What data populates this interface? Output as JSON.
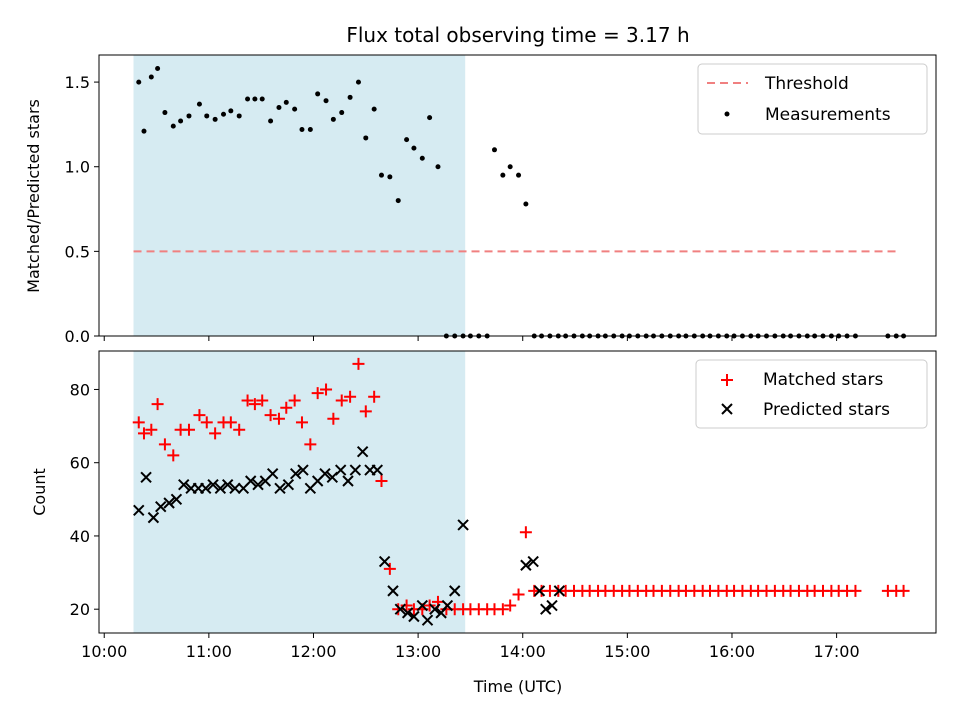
{
  "chart_data": {
    "title": "Flux total observing time = 3.17 h",
    "xlabel": "Time (UTC)",
    "x_unit": "hours",
    "xlim": [
      9.95,
      17.95
    ],
    "x_ticks": [
      {
        "value": 10,
        "label": "10:00"
      },
      {
        "value": 11,
        "label": "11:00"
      },
      {
        "value": 12,
        "label": "12:00"
      },
      {
        "value": 13,
        "label": "13:00"
      },
      {
        "value": 14,
        "label": "14:00"
      },
      {
        "value": 15,
        "label": "15:00"
      },
      {
        "value": 16,
        "label": "16:00"
      },
      {
        "value": 17,
        "label": "17:00"
      }
    ],
    "shaded_span": {
      "x_start": 10.28,
      "x_end": 13.45,
      "color": "#add8e6"
    },
    "panels": [
      {
        "id": "ratio",
        "type": "scatter",
        "ylabel": "Matched/Predicted stars",
        "ylim": [
          0,
          1.66
        ],
        "y_ticks": [
          0,
          0.5,
          1.0,
          1.5
        ],
        "y_tick_labels": [
          "0.0",
          "0.5",
          "1.0",
          "1.5"
        ],
        "legend": {
          "placement": "top-right",
          "entries": [
            "Threshold",
            "Measurements"
          ]
        },
        "threshold": {
          "name": "Threshold",
          "y": 0.5,
          "x_range": [
            10.28,
            17.6
          ],
          "color": "#f08080"
        },
        "series": [
          {
            "name": "Measurements",
            "marker": "dot",
            "color": "#000000",
            "x": [
              10.33,
              10.38,
              10.45,
              10.51,
              10.58,
              10.66,
              10.73,
              10.81,
              10.91,
              10.98,
              11.06,
              11.14,
              11.21,
              11.29,
              11.37,
              11.44,
              11.51,
              11.59,
              11.67,
              11.74,
              11.82,
              11.89,
              11.97,
              12.04,
              12.12,
              12.19,
              12.27,
              12.35,
              12.43,
              12.5,
              12.58,
              12.65,
              12.73,
              12.81,
              12.89,
              12.96,
              13.04,
              13.11,
              13.19,
              13.27,
              13.35,
              13.43,
              13.5,
              13.58,
              13.66,
              13.73,
              13.81,
              13.88,
              13.96,
              14.03,
              14.11,
              14.18,
              14.26,
              14.34,
              14.41,
              14.49,
              14.57,
              14.64,
              14.72,
              14.79,
              14.87,
              14.95,
              15.02,
              15.1,
              15.18,
              15.25,
              15.33,
              15.41,
              15.49,
              15.56,
              15.64,
              15.72,
              15.79,
              15.87,
              15.95,
              16.02,
              16.1,
              16.18,
              16.25,
              16.33,
              16.41,
              16.49,
              16.56,
              16.64,
              16.72,
              16.79,
              16.87,
              16.95,
              17.02,
              17.1,
              17.18,
              17.49,
              17.57,
              17.64
            ],
            "y": [
              1.5,
              1.21,
              1.53,
              1.58,
              1.32,
              1.24,
              1.27,
              1.3,
              1.37,
              1.3,
              1.28,
              1.31,
              1.33,
              1.3,
              1.4,
              1.4,
              1.4,
              1.27,
              1.35,
              1.38,
              1.34,
              1.22,
              1.22,
              1.43,
              1.39,
              1.28,
              1.32,
              1.41,
              1.5,
              1.17,
              1.34,
              0.95,
              0.94,
              0.8,
              1.16,
              1.11,
              1.05,
              1.29,
              1.0,
              0,
              0,
              0,
              0,
              0,
              0,
              1.1,
              0.95,
              1.0,
              0.95,
              0.78,
              0,
              0,
              0,
              0,
              0,
              0,
              0,
              0,
              0,
              0,
              0,
              0,
              0,
              0,
              0,
              0,
              0,
              0,
              0,
              0,
              0,
              0,
              0,
              0,
              0,
              0,
              0,
              0,
              0,
              0,
              0,
              0,
              0,
              0,
              0,
              0,
              0,
              0,
              0,
              0,
              0,
              0,
              0,
              0
            ]
          }
        ]
      },
      {
        "id": "count",
        "type": "scatter",
        "ylabel": "Count",
        "ylim": [
          13.5,
          90.5
        ],
        "y_ticks": [
          20,
          40,
          60,
          80
        ],
        "y_tick_labels": [
          "20",
          "40",
          "60",
          "80"
        ],
        "legend": {
          "placement": "top-right",
          "entries": [
            "Matched stars",
            "Predicted stars"
          ]
        },
        "series": [
          {
            "name": "Matched stars",
            "marker": "plus",
            "color": "#ff0000",
            "x": [
              10.33,
              10.38,
              10.45,
              10.51,
              10.58,
              10.66,
              10.73,
              10.81,
              10.91,
              10.98,
              11.06,
              11.14,
              11.21,
              11.29,
              11.37,
              11.44,
              11.51,
              11.59,
              11.67,
              11.74,
              11.82,
              11.89,
              11.97,
              12.04,
              12.12,
              12.19,
              12.27,
              12.35,
              12.43,
              12.5,
              12.58,
              12.65,
              12.73,
              12.81,
              12.89,
              12.96,
              13.04,
              13.11,
              13.19,
              13.27,
              13.35,
              13.43,
              13.5,
              13.58,
              13.66,
              13.73,
              13.81,
              13.88,
              13.96,
              14.03,
              14.11,
              14.18,
              14.26,
              14.34,
              14.41,
              14.49,
              14.57,
              14.64,
              14.72,
              14.79,
              14.87,
              14.95,
              15.02,
              15.1,
              15.18,
              15.25,
              15.33,
              15.41,
              15.49,
              15.56,
              15.64,
              15.72,
              15.79,
              15.87,
              15.95,
              16.02,
              16.1,
              16.18,
              16.25,
              16.33,
              16.41,
              16.49,
              16.56,
              16.64,
              16.72,
              16.79,
              16.87,
              16.95,
              17.02,
              17.1,
              17.18,
              17.49,
              17.57,
              17.64
            ],
            "y": [
              71,
              68,
              69,
              76,
              65,
              62,
              69,
              69,
              73,
              71,
              68,
              71,
              71,
              69,
              77,
              76,
              77,
              73,
              72,
              75,
              77,
              71,
              65,
              79,
              80,
              72,
              77,
              78,
              87,
              74,
              78,
              55,
              31,
              20,
              21,
              20,
              20,
              21,
              22,
              20,
              20,
              20,
              20,
              20,
              20,
              20,
              20,
              21,
              24,
              41,
              25,
              25,
              25,
              25,
              25,
              25,
              25,
              25,
              25,
              25,
              25,
              25,
              25,
              25,
              25,
              25,
              25,
              25,
              25,
              25,
              25,
              25,
              25,
              25,
              25,
              25,
              25,
              25,
              25,
              25,
              25,
              25,
              25,
              25,
              25,
              25,
              25,
              25,
              25,
              25,
              25,
              25,
              25,
              25
            ]
          },
          {
            "name": "Predicted stars",
            "marker": "x",
            "color": "#000000",
            "x": [
              10.33,
              10.4,
              10.47,
              10.54,
              10.62,
              10.69,
              10.76,
              10.83,
              10.9,
              10.97,
              11.04,
              11.11,
              11.18,
              11.25,
              11.33,
              11.4,
              11.47,
              11.54,
              11.61,
              11.68,
              11.76,
              11.83,
              11.9,
              11.97,
              12.04,
              12.11,
              12.18,
              12.26,
              12.33,
              12.4,
              12.47,
              12.54,
              12.61,
              12.68,
              12.76,
              12.83,
              12.9,
              12.96,
              13.04,
              13.09,
              13.16,
              13.22,
              13.28,
              13.35,
              13.43,
              14.03,
              14.1,
              14.16,
              14.22,
              14.28,
              14.35
            ],
            "y": [
              47,
              56,
              45,
              48,
              49,
              50,
              54,
              53,
              53,
              53,
              54,
              53,
              54,
              53,
              53,
              55,
              54,
              55,
              57,
              53,
              54,
              57,
              58,
              53,
              55,
              57,
              56,
              58,
              55,
              58,
              63,
              58,
              58,
              33,
              25,
              20,
              19,
              18,
              21,
              17,
              20,
              19,
              21,
              25,
              43,
              32,
              33,
              25,
              20,
              21,
              25
            ]
          }
        ]
      }
    ]
  }
}
